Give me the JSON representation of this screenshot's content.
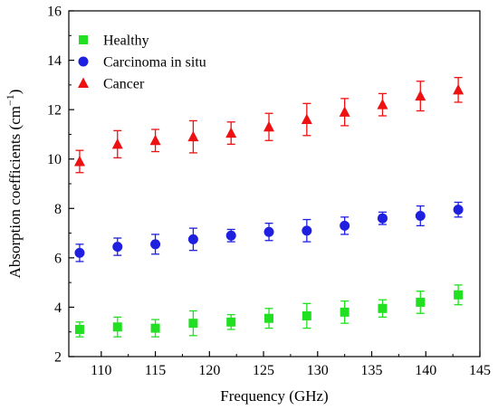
{
  "chart_data": {
    "type": "scatter",
    "title": "",
    "xlabel": "Frequency (GHz)",
    "ylabel_main": "Absorption coefficients (cm",
    "ylabel_sup": "−1",
    "ylabel_close": ")",
    "xlim": [
      107,
      145
    ],
    "ylim": [
      2,
      16
    ],
    "xticks": [
      110,
      115,
      120,
      125,
      130,
      135,
      140,
      145
    ],
    "yticks": [
      2,
      4,
      6,
      8,
      10,
      12,
      14,
      16
    ],
    "grid": false,
    "legend_position": "top-left",
    "x": [
      108,
      111.5,
      115,
      118.5,
      122,
      125.5,
      129,
      132.5,
      136,
      139.5,
      143
    ],
    "series": [
      {
        "name": "Healthy",
        "marker": "square",
        "color": "#21e021",
        "values": [
          3.1,
          3.2,
          3.15,
          3.35,
          3.4,
          3.55,
          3.65,
          3.8,
          3.95,
          4.2,
          4.5
        ],
        "errors": [
          0.3,
          0.4,
          0.35,
          0.5,
          0.3,
          0.4,
          0.5,
          0.45,
          0.35,
          0.45,
          0.4
        ]
      },
      {
        "name": "Carcinoma in situ",
        "marker": "circle",
        "color": "#1f1fe0",
        "values": [
          6.2,
          6.45,
          6.55,
          6.75,
          6.9,
          7.05,
          7.1,
          7.3,
          7.6,
          7.7,
          7.95
        ],
        "errors": [
          0.35,
          0.35,
          0.4,
          0.45,
          0.25,
          0.35,
          0.45,
          0.35,
          0.25,
          0.4,
          0.3
        ]
      },
      {
        "name": "Cancer",
        "marker": "triangle",
        "color": "#ee1111",
        "values": [
          9.9,
          10.6,
          10.75,
          10.9,
          11.05,
          11.3,
          11.6,
          11.9,
          12.2,
          12.55,
          12.8
        ],
        "errors": [
          0.45,
          0.55,
          0.45,
          0.65,
          0.45,
          0.55,
          0.65,
          0.55,
          0.45,
          0.6,
          0.5
        ]
      }
    ]
  }
}
